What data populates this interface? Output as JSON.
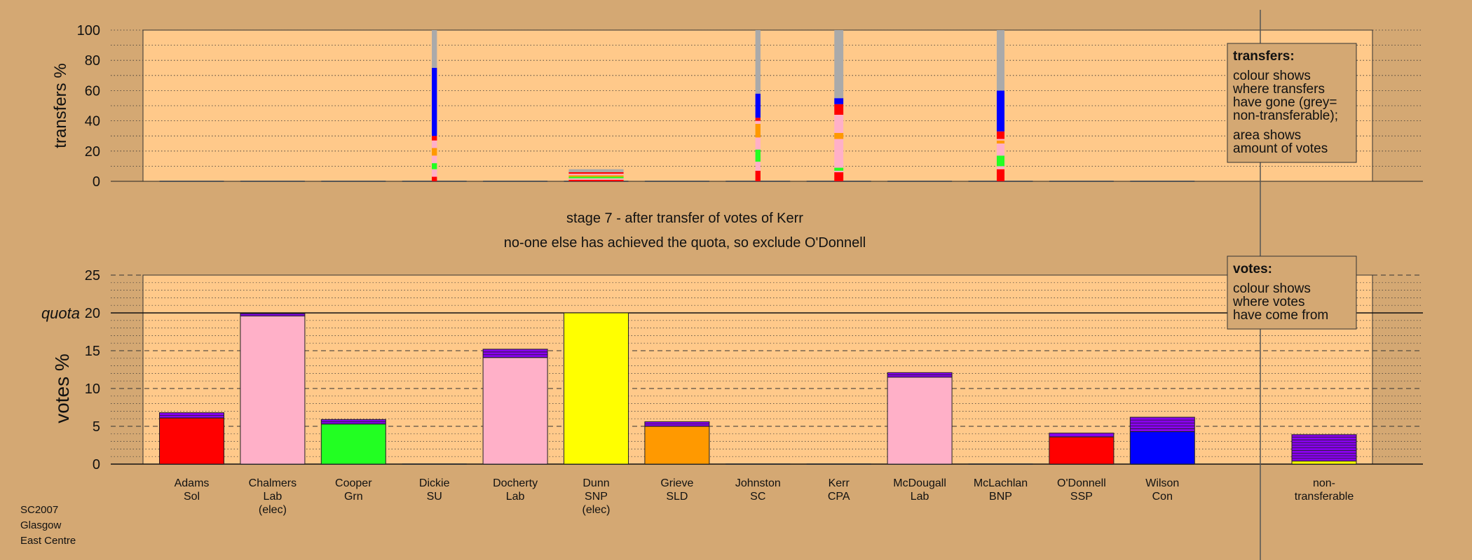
{
  "stage_title": "stage 7 - after transfer of votes of Kerr",
  "stage_subtitle": "no-one else has achieved the quota, so exclude O'Donnell",
  "footer": [
    "SC2007",
    "Glasgow",
    "East Centre"
  ],
  "legend_transfers": {
    "title": "transfers:",
    "lines": [
      "colour shows",
      "where transfers",
      "have gone (grey=",
      "non-transferable);",
      "area shows",
      "amount of votes"
    ]
  },
  "legend_votes": {
    "title": "votes:",
    "lines": [
      "colour shows",
      "where votes",
      "have come from"
    ]
  },
  "colors": {
    "background": "#d4a873",
    "panel": "#ffc98a",
    "Sol": "#ff0000",
    "Lab": "#ffb0c8",
    "Grn": "#22ff22",
    "SNP": "#ffff00",
    "SLD": "#ff9900",
    "Con": "#0000ff",
    "SSP": "#ff0000",
    "other": "#8800ee",
    "nontransferable": "#aaaaaa"
  },
  "chart_data": [
    {
      "type": "bar",
      "name": "transfers",
      "ylabel": "transfers %",
      "ylim": [
        0,
        100
      ],
      "yticks": [
        0,
        20,
        40,
        60,
        80,
        100
      ],
      "legend_placement": "top-right",
      "categories": [
        "Adams",
        "Chalmers",
        "Cooper",
        "Dickie",
        "Docherty",
        "Dunn",
        "Grieve",
        "Johnston",
        "Kerr",
        "McDougall",
        "McLachlan",
        "O'Donnell",
        "Wilson",
        "non-transferable"
      ],
      "bars": [
        {
          "category": "Dickie",
          "width_rel": 0.08,
          "segments": [
            {
              "party": "Sol",
              "from": 0,
              "to": 3
            },
            {
              "party": "Lab",
              "from": 3,
              "to": 8
            },
            {
              "party": "Grn",
              "from": 8,
              "to": 12
            },
            {
              "party": "Lab",
              "from": 12,
              "to": 17
            },
            {
              "party": "SLD",
              "from": 17,
              "to": 22
            },
            {
              "party": "Lab",
              "from": 22,
              "to": 27
            },
            {
              "party": "SSP",
              "from": 27,
              "to": 30
            },
            {
              "party": "Con",
              "from": 30,
              "to": 75
            },
            {
              "party": "nontransferable",
              "from": 75,
              "to": 100
            }
          ]
        },
        {
          "category": "Dunn",
          "width_rel": 0.85,
          "segments": [
            {
              "party": "Sol",
              "from": 0,
              "to": 1
            },
            {
              "party": "Lab",
              "from": 1,
              "to": 2
            },
            {
              "party": "Grn",
              "from": 2,
              "to": 3
            },
            {
              "party": "SLD",
              "from": 3,
              "to": 4
            },
            {
              "party": "Lab",
              "from": 4,
              "to": 5
            },
            {
              "party": "SSP",
              "from": 5,
              "to": 6
            },
            {
              "party": "nontransferable",
              "from": 6,
              "to": 8
            }
          ]
        },
        {
          "category": "Johnston",
          "width_rel": 0.08,
          "segments": [
            {
              "party": "Sol",
              "from": 0,
              "to": 7
            },
            {
              "party": "Lab",
              "from": 7,
              "to": 13
            },
            {
              "party": "Grn",
              "from": 13,
              "to": 21
            },
            {
              "party": "Lab",
              "from": 21,
              "to": 29
            },
            {
              "party": "SLD",
              "from": 29,
              "to": 38
            },
            {
              "party": "Lab",
              "from": 38,
              "to": 40
            },
            {
              "party": "SSP",
              "from": 40,
              "to": 42
            },
            {
              "party": "Con",
              "from": 42,
              "to": 58
            },
            {
              "party": "nontransferable",
              "from": 58,
              "to": 100
            }
          ]
        },
        {
          "category": "Kerr",
          "width_rel": 0.14,
          "segments": [
            {
              "party": "Sol",
              "from": 0,
              "to": 6
            },
            {
              "party": "Lab",
              "from": 6,
              "to": 7
            },
            {
              "party": "Grn",
              "from": 7,
              "to": 9
            },
            {
              "party": "Lab",
              "from": 9,
              "to": 28
            },
            {
              "party": "SLD",
              "from": 28,
              "to": 32
            },
            {
              "party": "Lab",
              "from": 32,
              "to": 44
            },
            {
              "party": "SSP",
              "from": 44,
              "to": 51
            },
            {
              "party": "Con",
              "from": 51,
              "to": 55
            },
            {
              "party": "nontransferable",
              "from": 55,
              "to": 100
            }
          ]
        },
        {
          "category": "McLachlan",
          "width_rel": 0.12,
          "segments": [
            {
              "party": "Sol",
              "from": 0,
              "to": 8
            },
            {
              "party": "Lab",
              "from": 8,
              "to": 10
            },
            {
              "party": "Grn",
              "from": 10,
              "to": 17
            },
            {
              "party": "Lab",
              "from": 17,
              "to": 25
            },
            {
              "party": "SLD",
              "from": 25,
              "to": 27
            },
            {
              "party": "Lab",
              "from": 27,
              "to": 28
            },
            {
              "party": "SSP",
              "from": 28,
              "to": 33
            },
            {
              "party": "Con",
              "from": 33,
              "to": 60
            },
            {
              "party": "nontransferable",
              "from": 60,
              "to": 100
            }
          ]
        }
      ]
    },
    {
      "type": "bar",
      "name": "votes",
      "ylabel": "votes %",
      "ylim": [
        0,
        25
      ],
      "yticks": [
        0,
        5,
        10,
        15,
        20,
        25
      ],
      "quota": 20,
      "quota_label": "quota",
      "legend_placement": "top-right",
      "categories": [
        {
          "name": "Adams",
          "party": "Sol",
          "note": ""
        },
        {
          "name": "Chalmers",
          "party": "Lab",
          "note": "(elec)"
        },
        {
          "name": "Cooper",
          "party": "Grn",
          "note": ""
        },
        {
          "name": "Dickie",
          "party": "SU",
          "note": ""
        },
        {
          "name": "Docherty",
          "party": "Lab",
          "note": ""
        },
        {
          "name": "Dunn",
          "party": "SNP",
          "note": "(elec)"
        },
        {
          "name": "Grieve",
          "party": "SLD",
          "note": ""
        },
        {
          "name": "Johnston",
          "party": "SC",
          "note": ""
        },
        {
          "name": "Kerr",
          "party": "CPA",
          "note": ""
        },
        {
          "name": "McDougall",
          "party": "Lab",
          "note": ""
        },
        {
          "name": "McLachlan",
          "party": "BNP",
          "note": ""
        },
        {
          "name": "O'Donnell",
          "party": "SSP",
          "note": ""
        },
        {
          "name": "Wilson",
          "party": "Con",
          "note": ""
        },
        {
          "name": "non-",
          "party": "transferable",
          "note": ""
        }
      ],
      "bars": [
        {
          "category": "Adams",
          "segments": [
            {
              "color": "Sol",
              "from": 0,
              "to": 6.1
            },
            {
              "color": "other",
              "from": 6.1,
              "to": 6.8
            }
          ]
        },
        {
          "category": "Chalmers",
          "segments": [
            {
              "color": "Lab",
              "from": 0,
              "to": 19.6
            },
            {
              "color": "other",
              "from": 19.6,
              "to": 19.9
            }
          ]
        },
        {
          "category": "Cooper",
          "segments": [
            {
              "color": "Grn",
              "from": 0,
              "to": 5.3
            },
            {
              "color": "other",
              "from": 5.3,
              "to": 5.9
            }
          ]
        },
        {
          "category": "Dickie",
          "segments": []
        },
        {
          "category": "Docherty",
          "segments": [
            {
              "color": "Lab",
              "from": 0,
              "to": 14.1
            },
            {
              "color": "other",
              "from": 14.1,
              "to": 15.2
            }
          ]
        },
        {
          "category": "Dunn",
          "segments": [
            {
              "color": "SNP",
              "from": 0,
              "to": 20
            }
          ]
        },
        {
          "category": "Grieve",
          "segments": [
            {
              "color": "SLD",
              "from": 0,
              "to": 5
            },
            {
              "color": "other",
              "from": 5,
              "to": 5.6
            }
          ]
        },
        {
          "category": "Johnston",
          "segments": []
        },
        {
          "category": "Kerr",
          "segments": []
        },
        {
          "category": "McDougall",
          "segments": [
            {
              "color": "Lab",
              "from": 0,
              "to": 11.5
            },
            {
              "color": "other",
              "from": 11.5,
              "to": 12.1
            }
          ]
        },
        {
          "category": "McLachlan",
          "segments": []
        },
        {
          "category": "O'Donnell",
          "segments": [
            {
              "color": "SSP",
              "from": 0,
              "to": 3.6
            },
            {
              "color": "other",
              "from": 3.6,
              "to": 4.1
            }
          ]
        },
        {
          "category": "Wilson",
          "segments": [
            {
              "color": "Con",
              "from": 0,
              "to": 4.3
            },
            {
              "color": "other",
              "from": 4.3,
              "to": 6.2
            }
          ]
        },
        {
          "category": "non-",
          "segments": [
            {
              "color": "SNP",
              "from": 0,
              "to": 0.4
            },
            {
              "color": "other",
              "from": 0.4,
              "to": 3.9
            }
          ]
        }
      ]
    }
  ]
}
